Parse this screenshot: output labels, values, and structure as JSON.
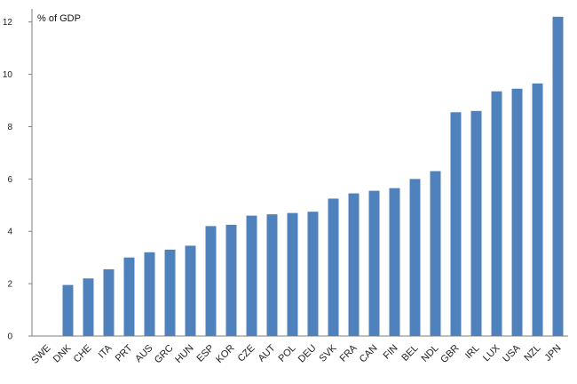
{
  "chart_data": {
    "type": "bar",
    "ylabel": "% of GDP",
    "ylim": [
      0,
      12.5
    ],
    "yticks": [
      0,
      2,
      4,
      6,
      8,
      10,
      12
    ],
    "grid": false,
    "bar_color": "#4f81bd",
    "axis_color": "#7f7f7f",
    "categories": [
      "SWE",
      "DNK",
      "CHE",
      "ITA",
      "PRT",
      "AUS",
      "GRC",
      "HUN",
      "ESP",
      "KOR",
      "CZE",
      "AUT",
      "POL",
      "DEU",
      "SVK",
      "FRA",
      "CAN",
      "FIN",
      "BEL",
      "NDL",
      "GBR",
      "IRL",
      "LUX",
      "USA",
      "NZL",
      "JPN"
    ],
    "values": [
      0,
      1.95,
      2.2,
      2.55,
      3.0,
      3.2,
      3.3,
      3.45,
      4.2,
      4.25,
      4.6,
      4.65,
      4.7,
      4.75,
      5.25,
      5.45,
      5.55,
      5.65,
      6.0,
      6.3,
      8.55,
      8.6,
      9.35,
      9.45,
      9.65,
      12.2
    ]
  }
}
